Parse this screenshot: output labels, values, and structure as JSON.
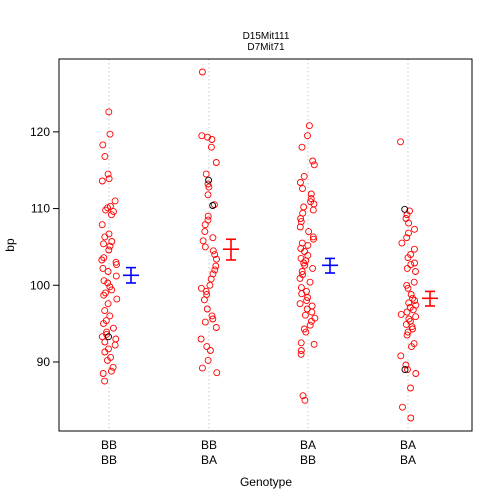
{
  "chart_data": {
    "type": "scatter",
    "title_lines": [
      "D15Mit111",
      "D7Mit71"
    ],
    "xlabel": "Genotype",
    "ylabel": "bp",
    "ylim": [
      81,
      129.5
    ],
    "yticks": [
      90,
      100,
      110,
      120
    ],
    "grid": "vertical dotted lines at each genotype",
    "colors": {
      "typed": "#ff0000",
      "imputed": "#000000",
      "ci_red": "#ff0000",
      "ci_blue": "#0000ff",
      "grid": "#c8c8c8"
    },
    "groups": [
      {
        "label1": "BB",
        "label2": "BB",
        "mean": 101.3,
        "ci": [
          100.3,
          102.3
        ],
        "ci_color": "blue",
        "values": [
          122.6,
          119.7,
          118.3,
          116.8,
          114.5,
          113.9,
          113.6,
          111.0,
          110.3,
          110.1,
          109.8,
          109.6,
          109.2,
          107.9,
          106.7,
          106.3,
          105.7,
          105.4,
          105.1,
          104.6,
          103.6,
          103.3,
          103.0,
          102.7,
          102.2,
          101.8,
          101.2,
          100.6,
          100.3,
          99.8,
          99.4,
          99.0,
          98.7,
          98.2,
          97.6,
          96.7,
          96.0,
          95.4,
          95.0,
          94.4,
          93.9,
          93.6,
          93.3,
          93.0,
          92.6,
          92.2,
          91.7,
          91.3,
          90.6,
          90.2,
          89.3,
          88.8,
          88.5,
          87.5
        ],
        "imputed": [
          93.3
        ]
      },
      {
        "label1": "BB",
        "label2": "BA",
        "mean": 104.7,
        "ci": [
          103.3,
          106.0
        ],
        "ci_color": "red",
        "values": [
          127.8,
          119.5,
          119.3,
          119.0,
          118.0,
          116.0,
          114.5,
          113.2,
          112.8,
          111.8,
          110.5,
          109.0,
          108.5,
          107.9,
          107.0,
          106.2,
          105.8,
          105.0,
          104.5,
          104.0,
          103.4,
          102.5,
          102.0,
          101.5,
          100.8,
          100.0,
          99.6,
          99.2,
          98.8,
          98.1,
          96.9,
          96.0,
          95.6,
          95.2,
          94.5,
          93.0,
          92.0,
          91.5,
          90.2,
          89.2,
          88.6
        ],
        "imputed": [
          113.7,
          110.4
        ]
      },
      {
        "label1": "BA",
        "label2": "BB",
        "mean": 102.6,
        "ci": [
          101.6,
          103.5
        ],
        "ci_color": "blue",
        "values": [
          120.8,
          119.5,
          118.0,
          116.2,
          115.7,
          114.2,
          113.4,
          112.6,
          111.9,
          111.3,
          110.9,
          110.6,
          110.2,
          109.8,
          109.4,
          108.7,
          108.3,
          107.6,
          107.0,
          106.3,
          106.0,
          105.5,
          105.2,
          104.8,
          104.4,
          103.9,
          103.5,
          103.2,
          102.9,
          102.6,
          102.2,
          101.8,
          101.4,
          100.9,
          100.4,
          99.7,
          99.2,
          98.9,
          98.4,
          98.0,
          97.6,
          97.3,
          96.9,
          96.5,
          96.1,
          95.7,
          95.3,
          94.8,
          94.3,
          93.9,
          92.5,
          92.3,
          91.5,
          91.0,
          85.6,
          85.0
        ],
        "imputed": []
      },
      {
        "label1": "BA",
        "label2": "BA",
        "mean": 98.3,
        "ci": [
          97.3,
          99.2
        ],
        "ci_color": "red",
        "values": [
          118.7,
          109.7,
          109.2,
          108.7,
          108.1,
          107.3,
          106.8,
          106.2,
          105.5,
          104.7,
          104.0,
          103.6,
          102.9,
          102.7,
          102.2,
          101.8,
          100.4,
          100.0,
          99.6,
          98.8,
          98.3,
          98.0,
          97.7,
          97.4,
          97.1,
          96.8,
          96.5,
          96.2,
          95.9,
          95.6,
          95.3,
          94.9,
          94.6,
          94.3,
          93.9,
          93.5,
          92.4,
          92.0,
          90.8,
          89.6,
          89.0,
          88.5,
          86.6,
          84.1,
          82.7
        ],
        "imputed": [
          109.9,
          89.0
        ]
      }
    ]
  }
}
